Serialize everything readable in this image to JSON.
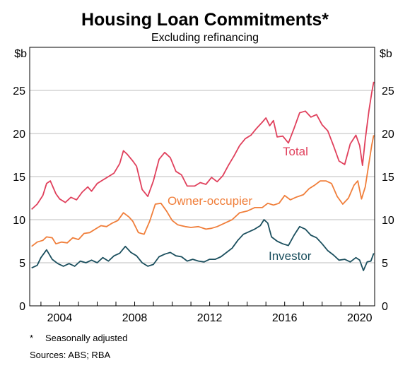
{
  "chart_data": {
    "type": "line",
    "title": "Housing Loan Commitments*",
    "subtitle": "Excluding refinancing",
    "y_unit": "$b",
    "ylim": [
      0,
      30
    ],
    "y_ticks": [
      "0",
      "5",
      "10",
      "15",
      "20",
      "25"
    ],
    "xlim": [
      2002.4,
      2020.8
    ],
    "x_ticks": [
      "2004",
      "2008",
      "2012",
      "2016",
      "2020"
    ],
    "grid": "horizontal",
    "series": [
      {
        "name": "Total",
        "color": "#e0405c",
        "points": [
          [
            2002.5,
            11.2
          ],
          [
            2002.8,
            11.8
          ],
          [
            2003.1,
            12.8
          ],
          [
            2003.3,
            14.2
          ],
          [
            2003.5,
            14.5
          ],
          [
            2003.8,
            13.0
          ],
          [
            2004.0,
            12.4
          ],
          [
            2004.3,
            12.0
          ],
          [
            2004.6,
            12.6
          ],
          [
            2004.9,
            12.3
          ],
          [
            2005.2,
            13.2
          ],
          [
            2005.5,
            13.8
          ],
          [
            2005.7,
            13.3
          ],
          [
            2006.0,
            14.2
          ],
          [
            2006.3,
            14.6
          ],
          [
            2006.6,
            15.0
          ],
          [
            2006.9,
            15.4
          ],
          [
            2007.2,
            16.5
          ],
          [
            2007.4,
            18.0
          ],
          [
            2007.6,
            17.6
          ],
          [
            2007.9,
            16.8
          ],
          [
            2008.1,
            16.2
          ],
          [
            2008.4,
            13.5
          ],
          [
            2008.7,
            12.7
          ],
          [
            2009.0,
            14.5
          ],
          [
            2009.3,
            17.0
          ],
          [
            2009.6,
            17.8
          ],
          [
            2009.9,
            17.2
          ],
          [
            2010.2,
            15.6
          ],
          [
            2010.5,
            15.2
          ],
          [
            2010.8,
            13.9
          ],
          [
            2011.2,
            13.9
          ],
          [
            2011.5,
            14.3
          ],
          [
            2011.8,
            14.1
          ],
          [
            2012.1,
            14.9
          ],
          [
            2012.4,
            14.4
          ],
          [
            2012.7,
            15.1
          ],
          [
            2013.0,
            16.3
          ],
          [
            2013.3,
            17.4
          ],
          [
            2013.6,
            18.6
          ],
          [
            2013.9,
            19.4
          ],
          [
            2014.2,
            19.8
          ],
          [
            2014.5,
            20.6
          ],
          [
            2014.8,
            21.3
          ],
          [
            2015.0,
            21.8
          ],
          [
            2015.2,
            20.9
          ],
          [
            2015.4,
            21.5
          ],
          [
            2015.6,
            19.6
          ],
          [
            2015.9,
            19.7
          ],
          [
            2016.2,
            18.9
          ],
          [
            2016.5,
            20.6
          ],
          [
            2016.8,
            22.4
          ],
          [
            2017.1,
            22.6
          ],
          [
            2017.4,
            21.9
          ],
          [
            2017.7,
            22.2
          ],
          [
            2018.0,
            21.0
          ],
          [
            2018.3,
            20.3
          ],
          [
            2018.6,
            18.6
          ],
          [
            2018.9,
            16.8
          ],
          [
            2019.2,
            16.4
          ],
          [
            2019.5,
            18.8
          ],
          [
            2019.8,
            19.8
          ],
          [
            2020.0,
            18.6
          ],
          [
            2020.15,
            16.3
          ],
          [
            2020.3,
            19.3
          ],
          [
            2020.5,
            22.7
          ],
          [
            2020.65,
            24.8
          ],
          [
            2020.75,
            26.0
          ]
        ]
      },
      {
        "name": "Owner-occupier",
        "color": "#f07e3a",
        "points": [
          [
            2002.5,
            6.9
          ],
          [
            2002.8,
            7.4
          ],
          [
            2003.1,
            7.6
          ],
          [
            2003.3,
            8.0
          ],
          [
            2003.6,
            7.9
          ],
          [
            2003.8,
            7.2
          ],
          [
            2004.1,
            7.4
          ],
          [
            2004.4,
            7.3
          ],
          [
            2004.7,
            7.9
          ],
          [
            2005.0,
            7.7
          ],
          [
            2005.3,
            8.4
          ],
          [
            2005.6,
            8.5
          ],
          [
            2005.9,
            8.9
          ],
          [
            2006.2,
            9.3
          ],
          [
            2006.5,
            9.2
          ],
          [
            2006.8,
            9.6
          ],
          [
            2007.1,
            9.9
          ],
          [
            2007.4,
            10.8
          ],
          [
            2007.7,
            10.3
          ],
          [
            2007.9,
            9.8
          ],
          [
            2008.2,
            8.5
          ],
          [
            2008.5,
            8.3
          ],
          [
            2008.8,
            9.8
          ],
          [
            2009.1,
            11.8
          ],
          [
            2009.4,
            11.9
          ],
          [
            2009.7,
            11.0
          ],
          [
            2010.0,
            9.9
          ],
          [
            2010.3,
            9.4
          ],
          [
            2010.7,
            9.2
          ],
          [
            2011.0,
            9.1
          ],
          [
            2011.4,
            9.2
          ],
          [
            2011.8,
            8.9
          ],
          [
            2012.1,
            9.0
          ],
          [
            2012.4,
            9.2
          ],
          [
            2012.8,
            9.6
          ],
          [
            2013.2,
            10.0
          ],
          [
            2013.6,
            10.8
          ],
          [
            2014.0,
            11.0
          ],
          [
            2014.4,
            11.4
          ],
          [
            2014.8,
            11.4
          ],
          [
            2015.1,
            11.9
          ],
          [
            2015.4,
            11.7
          ],
          [
            2015.7,
            11.9
          ],
          [
            2016.0,
            12.8
          ],
          [
            2016.3,
            12.3
          ],
          [
            2016.6,
            12.6
          ],
          [
            2017.0,
            12.9
          ],
          [
            2017.3,
            13.6
          ],
          [
            2017.6,
            14.0
          ],
          [
            2017.9,
            14.5
          ],
          [
            2018.2,
            14.5
          ],
          [
            2018.5,
            14.2
          ],
          [
            2018.8,
            12.7
          ],
          [
            2019.1,
            11.8
          ],
          [
            2019.4,
            12.5
          ],
          [
            2019.7,
            14.0
          ],
          [
            2019.9,
            14.5
          ],
          [
            2020.1,
            12.4
          ],
          [
            2020.3,
            13.8
          ],
          [
            2020.5,
            16.6
          ],
          [
            2020.65,
            18.7
          ],
          [
            2020.75,
            19.8
          ]
        ]
      },
      {
        "name": "Investor",
        "color": "#1b4f5e",
        "points": [
          [
            2002.5,
            4.4
          ],
          [
            2002.8,
            4.7
          ],
          [
            2003.0,
            5.6
          ],
          [
            2003.3,
            6.5
          ],
          [
            2003.6,
            5.4
          ],
          [
            2003.9,
            4.9
          ],
          [
            2004.2,
            4.6
          ],
          [
            2004.5,
            4.9
          ],
          [
            2004.8,
            4.6
          ],
          [
            2005.1,
            5.2
          ],
          [
            2005.4,
            5.0
          ],
          [
            2005.7,
            5.3
          ],
          [
            2006.0,
            5.0
          ],
          [
            2006.3,
            5.6
          ],
          [
            2006.6,
            5.2
          ],
          [
            2006.9,
            5.8
          ],
          [
            2007.2,
            6.1
          ],
          [
            2007.5,
            6.9
          ],
          [
            2007.8,
            6.2
          ],
          [
            2008.1,
            5.8
          ],
          [
            2008.4,
            5.0
          ],
          [
            2008.7,
            4.6
          ],
          [
            2009.0,
            4.8
          ],
          [
            2009.3,
            5.7
          ],
          [
            2009.6,
            6.0
          ],
          [
            2009.9,
            6.2
          ],
          [
            2010.2,
            5.8
          ],
          [
            2010.5,
            5.7
          ],
          [
            2010.8,
            5.2
          ],
          [
            2011.1,
            5.4
          ],
          [
            2011.4,
            5.2
          ],
          [
            2011.7,
            5.1
          ],
          [
            2012.0,
            5.4
          ],
          [
            2012.3,
            5.4
          ],
          [
            2012.6,
            5.7
          ],
          [
            2012.9,
            6.2
          ],
          [
            2013.2,
            6.7
          ],
          [
            2013.5,
            7.6
          ],
          [
            2013.8,
            8.3
          ],
          [
            2014.1,
            8.6
          ],
          [
            2014.4,
            8.9
          ],
          [
            2014.7,
            9.3
          ],
          [
            2014.9,
            10.0
          ],
          [
            2015.1,
            9.6
          ],
          [
            2015.3,
            8.0
          ],
          [
            2015.6,
            7.5
          ],
          [
            2015.9,
            7.2
          ],
          [
            2016.2,
            7.0
          ],
          [
            2016.5,
            8.2
          ],
          [
            2016.8,
            9.2
          ],
          [
            2017.1,
            8.9
          ],
          [
            2017.4,
            8.2
          ],
          [
            2017.7,
            7.9
          ],
          [
            2018.0,
            7.2
          ],
          [
            2018.3,
            6.4
          ],
          [
            2018.6,
            5.9
          ],
          [
            2018.9,
            5.3
          ],
          [
            2019.2,
            5.4
          ],
          [
            2019.5,
            5.1
          ],
          [
            2019.8,
            5.6
          ],
          [
            2020.0,
            5.3
          ],
          [
            2020.2,
            4.1
          ],
          [
            2020.4,
            5.1
          ],
          [
            2020.6,
            5.2
          ],
          [
            2020.75,
            6.1
          ]
        ]
      }
    ],
    "footnote": "Seasonally adjusted",
    "footnote_marker": "*",
    "source": "Sources: ABS; RBA"
  }
}
